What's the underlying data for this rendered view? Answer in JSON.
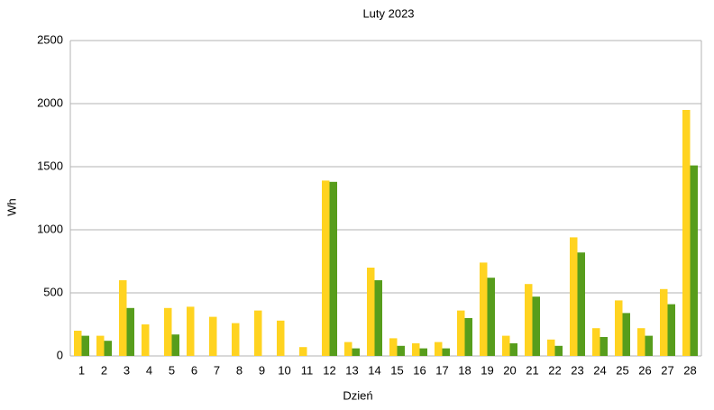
{
  "chart_data": {
    "type": "bar",
    "title": "Luty 2023",
    "x_label": "Dzień",
    "y_label": "Wh",
    "categories": [
      "1",
      "2",
      "3",
      "4",
      "5",
      "6",
      "7",
      "8",
      "9",
      "10",
      "11",
      "12",
      "13",
      "14",
      "15",
      "16",
      "17",
      "18",
      "19",
      "20",
      "21",
      "22",
      "23",
      "24",
      "25",
      "26",
      "27",
      "28"
    ],
    "series": [
      {
        "color": "#ffd320",
        "values": [
          200,
          160,
          600,
          250,
          380,
          390,
          310,
          260,
          360,
          280,
          70,
          1390,
          110,
          700,
          140,
          100,
          110,
          360,
          740,
          160,
          570,
          130,
          940,
          220,
          440,
          220,
          530,
          1950
        ]
      },
      {
        "color": "#579d1c",
        "values": [
          160,
          120,
          380,
          0,
          170,
          0,
          0,
          0,
          0,
          0,
          0,
          1380,
          60,
          600,
          80,
          60,
          60,
          300,
          620,
          100,
          470,
          80,
          820,
          150,
          340,
          160,
          410,
          1510
        ]
      }
    ],
    "ylim": [
      0,
      2500
    ],
    "yticks": [
      0,
      500,
      1000,
      1500,
      2000,
      2500
    ],
    "grid": true
  }
}
